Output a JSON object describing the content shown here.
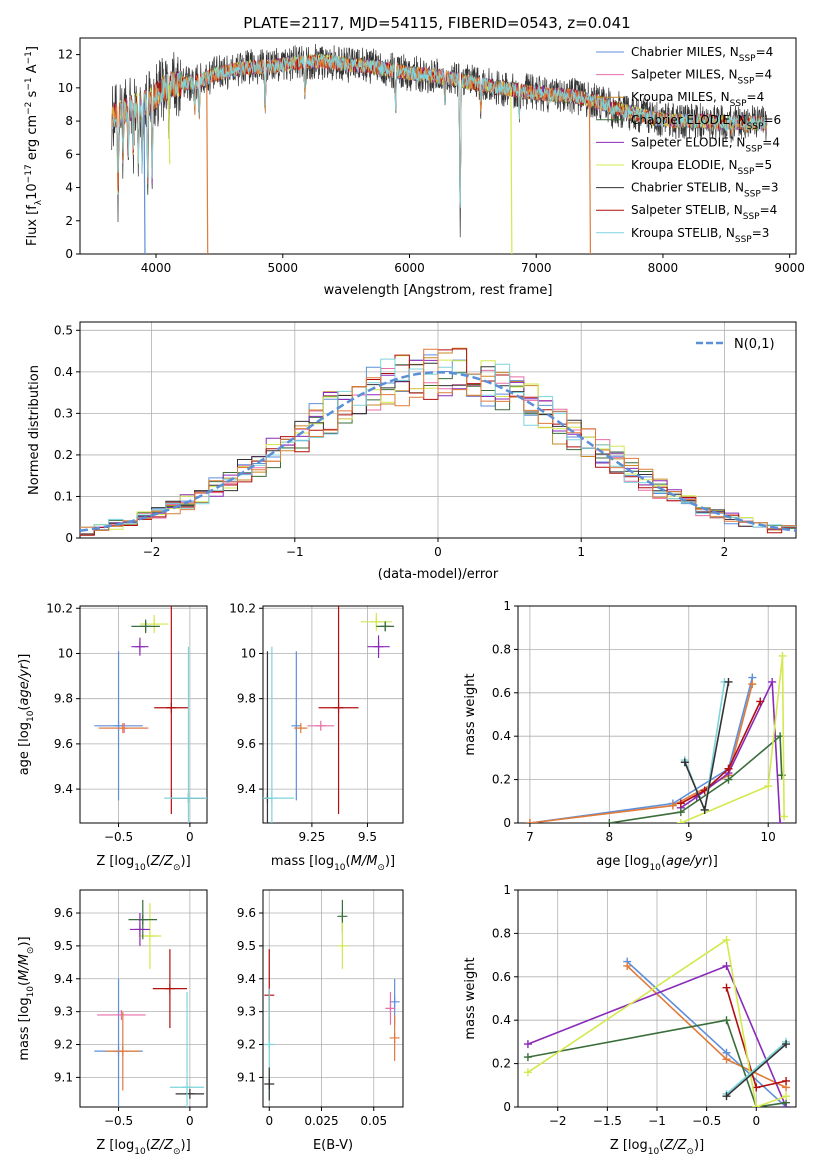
{
  "figure": {
    "title": "PLATE=2117, MJD=54115, FIBERID=0543, z=0.041"
  },
  "colors": {
    "chabrier_miles": "#5f8fd9",
    "salpeter_miles": "#e86ea8",
    "kroupa_miles": "#c98a26",
    "chabrier_elodie": "#3a6e3a",
    "salpeter_elodie": "#8a2ab8",
    "kroupa_elodie": "#d4e84f",
    "chabrier_stelib": "#333333",
    "salpeter_stelib": "#b20f0f",
    "kroupa_stelib": "#7dd4dc",
    "extra_orange": "#e07b39",
    "gauss": "#5b8fd8"
  },
  "chart_data": [
    {
      "id": "spectrum",
      "type": "line",
      "xlabel": "wavelength [Angstrom, rest frame]",
      "ylabel": "Flux [f_λ10^-17 erg cm^-2 s^-1 A^-1]",
      "xlim": [
        3400,
        9050
      ],
      "ylim": [
        0,
        13
      ],
      "xticks": [
        4000,
        5000,
        6000,
        7000,
        8000,
        9000
      ],
      "yticks": [
        0,
        2,
        4,
        6,
        8,
        10,
        12
      ],
      "legend_position": "top-right",
      "legend": [
        {
          "label": "Chabrier MILES, N",
          "sub": "SSP",
          "suffix": "=4",
          "color": "chabrier_miles"
        },
        {
          "label": "Salpeter MILES, N",
          "sub": "SSP",
          "suffix": "=4",
          "color": "salpeter_miles"
        },
        {
          "label": "Kroupa MILES, N",
          "sub": "SSP",
          "suffix": "=4",
          "color": "kroupa_miles"
        },
        {
          "label": "Chabrier ELODIE, N",
          "sub": "SSP",
          "suffix": "=6",
          "color": "chabrier_elodie"
        },
        {
          "label": "Salpeter ELODIE, N",
          "sub": "SSP",
          "suffix": "=4",
          "color": "salpeter_elodie"
        },
        {
          "label": "Kroupa ELODIE, N",
          "sub": "SSP",
          "suffix": "=5",
          "color": "kroupa_elodie"
        },
        {
          "label": "Chabrier STELIB, N",
          "sub": "SSP",
          "suffix": "=3",
          "color": "chabrier_stelib"
        },
        {
          "label": "Salpeter STELIB, N",
          "sub": "SSP",
          "suffix": "=4",
          "color": "salpeter_stelib"
        },
        {
          "label": "Kroupa STELIB, N",
          "sub": "SSP",
          "suffix": "=3",
          "color": "kroupa_stelib"
        }
      ],
      "continuum": [
        [
          3650,
          8.2
        ],
        [
          3800,
          8.8
        ],
        [
          3950,
          9.2
        ],
        [
          4100,
          10.2
        ],
        [
          4300,
          10.3
        ],
        [
          4500,
          10.9
        ],
        [
          4700,
          11.2
        ],
        [
          4900,
          11.3
        ],
        [
          5100,
          11.5
        ],
        [
          5300,
          11.6
        ],
        [
          5500,
          11.4
        ],
        [
          5700,
          11.3
        ],
        [
          5900,
          11.0
        ],
        [
          6100,
          10.8
        ],
        [
          6300,
          10.6
        ],
        [
          6500,
          10.3
        ],
        [
          6700,
          10.0
        ],
        [
          6900,
          9.8
        ],
        [
          7100,
          9.6
        ],
        [
          7300,
          9.5
        ],
        [
          7500,
          9.1
        ],
        [
          7700,
          8.6
        ],
        [
          7900,
          8.2
        ],
        [
          8100,
          8.0
        ],
        [
          8300,
          8.0
        ],
        [
          8500,
          7.9
        ],
        [
          8700,
          7.9
        ],
        [
          8820,
          7.8
        ]
      ],
      "dips": [
        [
          3700,
          3.2
        ],
        [
          3740,
          5.5
        ],
        [
          3780,
          6.0
        ],
        [
          3820,
          6.0
        ],
        [
          3860,
          5.0
        ],
        [
          3890,
          5.5
        ],
        [
          3934,
          4.8
        ],
        [
          3970,
          5.0
        ],
        [
          4101,
          8.0
        ],
        [
          4305,
          8.6
        ],
        [
          4340,
          8.0
        ],
        [
          4861,
          8.5
        ],
        [
          5175,
          9.5
        ],
        [
          5890,
          9.0
        ],
        [
          6280,
          9.0
        ],
        [
          6400,
          1.0
        ],
        [
          6563,
          8.6
        ],
        [
          6867,
          8.4
        ],
        [
          7600,
          8.4
        ],
        [
          8500,
          7.6
        ],
        [
          8542,
          7.5
        ],
        [
          8662,
          7.5
        ]
      ],
      "spikes": [
        [
          3905,
          0.0,
          "chabrier_miles"
        ],
        [
          4400,
          0.0,
          "extra_orange"
        ],
        [
          6800,
          0.0,
          "kroupa_elodie"
        ],
        [
          7420,
          0.0,
          "extra_orange"
        ],
        [
          4100,
          5.4,
          "kroupa_elodie"
        ]
      ]
    },
    {
      "id": "residuals",
      "type": "line",
      "xlabel": "(data-model)/error",
      "ylabel": "Normed distribution",
      "xlim": [
        -2.5,
        2.5
      ],
      "ylim": [
        0,
        0.52
      ],
      "xticks": [
        -2,
        -1,
        0,
        1,
        2
      ],
      "yticks": [
        0.0,
        0.1,
        0.2,
        0.3,
        0.4,
        0.5
      ],
      "grid": true,
      "legend_position": "top-right",
      "gauss_label": "N(0,1)",
      "bin_width": 0.1
    },
    {
      "id": "age_vs_Z",
      "type": "scatter",
      "xlabel": "Z [log10(Z/Z⊙)]",
      "ylabel": "age  [log10(age/yr)]",
      "xlim": [
        -0.77,
        0.12
      ],
      "ylim": [
        9.25,
        10.21
      ],
      "xticks": [
        -0.5,
        0.0
      ],
      "yticks": [
        9.4,
        9.6,
        9.8,
        10.0,
        10.2
      ],
      "grid": true,
      "points": [
        {
          "color": "chabrier_miles",
          "x": -0.5,
          "y": 9.68,
          "xerr": 0.17,
          "yerr": 0.33
        },
        {
          "color": "salpeter_miles",
          "x": -0.46,
          "y": 9.67,
          "xerr": 0.17,
          "yerr": 0.0
        },
        {
          "color": "extra_orange",
          "x": -0.47,
          "y": 9.67,
          "xerr": 0.17,
          "yerr": 0.0
        },
        {
          "color": "kroupa_elodie",
          "x": -0.25,
          "y": 10.13,
          "xerr": 0.1,
          "yerr": 0.04
        },
        {
          "color": "chabrier_elodie",
          "x": -0.31,
          "y": 10.12,
          "xerr": 0.1,
          "yerr": 0.03
        },
        {
          "color": "salpeter_elodie",
          "x": -0.35,
          "y": 10.03,
          "xerr": 0.06,
          "yerr": 0.04
        },
        {
          "color": "salpeter_stelib",
          "x": -0.13,
          "y": 9.76,
          "xerr": 0.12,
          "yerr": 0.47
        },
        {
          "color": "chabrier_stelib",
          "x": -0.01,
          "y": 9.36,
          "xerr": 0.12,
          "yerr": 0.0
        },
        {
          "color": "kroupa_stelib",
          "x": -0.01,
          "y": 9.36,
          "xerr": 0.17,
          "yerr": 0.67
        }
      ]
    },
    {
      "id": "age_vs_mass",
      "type": "scatter",
      "xlabel": "mass [log10(M/M⊙)]",
      "xlim": [
        9.03,
        9.66
      ],
      "ylim": [
        9.25,
        10.21
      ],
      "xticks": [
        9.25,
        9.5
      ],
      "yticks": [
        9.4,
        9.6,
        9.8,
        10.0,
        10.2
      ],
      "grid": true,
      "points": [
        {
          "color": "chabrier_miles",
          "x": 9.18,
          "y": 9.68,
          "xerr": 0.0,
          "yerr": 0.33
        },
        {
          "color": "salpeter_miles",
          "x": 9.29,
          "y": 9.68,
          "xerr": 0.06,
          "yerr": 0.0
        },
        {
          "color": "extra_orange",
          "x": 9.2,
          "y": 9.67,
          "xerr": 0.03,
          "yerr": 0.0
        },
        {
          "color": "kroupa_elodie",
          "x": 9.54,
          "y": 10.14,
          "xerr": 0.07,
          "yerr": 0.04
        },
        {
          "color": "chabrier_elodie",
          "x": 9.58,
          "y": 10.12,
          "xerr": 0.04,
          "yerr": 0.02
        },
        {
          "color": "salpeter_elodie",
          "x": 9.55,
          "y": 10.03,
          "xerr": 0.05,
          "yerr": 0.05
        },
        {
          "color": "salpeter_stelib",
          "x": 9.37,
          "y": 9.76,
          "xerr": 0.09,
          "yerr": 0.47
        },
        {
          "color": "chabrier_stelib",
          "x": 9.05,
          "y": 9.36,
          "xerr": 0.0,
          "yerr": 0.65
        },
        {
          "color": "kroupa_stelib",
          "x": 9.07,
          "y": 9.36,
          "xerr": 0.1,
          "yerr": 0.67
        }
      ]
    },
    {
      "id": "weight_vs_age",
      "type": "line",
      "xlabel": "age  [log10(age/yr)]",
      "ylabel": "mass weight",
      "xlim": [
        6.85,
        10.35
      ],
      "ylim": [
        0,
        1
      ],
      "xticks": [
        7,
        8,
        9,
        10
      ],
      "yticks": [
        0.0,
        0.2,
        0.4,
        0.6,
        0.8,
        1.0
      ],
      "grid": true,
      "series": [
        {
          "color": "chabrier_miles",
          "x": [
            7.0,
            8.8,
            9.5,
            9.8
          ],
          "y": [
            0.0,
            0.09,
            0.25,
            0.67
          ]
        },
        {
          "color": "extra_orange",
          "x": [
            7.0,
            8.8,
            9.5,
            9.8
          ],
          "y": [
            0.0,
            0.08,
            0.22,
            0.64
          ]
        },
        {
          "color": "salpeter_elodie",
          "x": [
            8.9,
            9.1,
            9.5,
            10.05,
            10.15
          ],
          "y": [
            0.07,
            0.12,
            0.23,
            0.65,
            0.0
          ]
        },
        {
          "color": "salpeter_stelib",
          "x": [
            8.9,
            9.2,
            9.5,
            9.9
          ],
          "y": [
            0.09,
            0.15,
            0.25,
            0.56
          ]
        },
        {
          "color": "chabrier_elodie",
          "x": [
            8.0,
            8.9,
            9.5,
            10.15,
            10.17
          ],
          "y": [
            0.0,
            0.05,
            0.2,
            0.4,
            0.22
          ]
        },
        {
          "color": "kroupa_elodie",
          "x": [
            8.9,
            10.0,
            10.18,
            10.2
          ],
          "y": [
            0.0,
            0.17,
            0.77,
            0.03
          ]
        },
        {
          "color": "kroupa_stelib",
          "x": [
            8.95,
            9.2,
            9.45
          ],
          "y": [
            0.29,
            0.06,
            0.65
          ]
        },
        {
          "color": "chabrier_stelib",
          "x": [
            8.95,
            9.2,
            9.5
          ],
          "y": [
            0.28,
            0.06,
            0.65
          ]
        }
      ]
    },
    {
      "id": "mass_vs_Z",
      "type": "scatter",
      "xlabel": "Z [log10(Z/Z⊙)]",
      "ylabel": "mass [log10(M/M⊙)]",
      "xlim": [
        -0.77,
        0.12
      ],
      "ylim": [
        9.01,
        9.67
      ],
      "xticks": [
        -0.5,
        0.0
      ],
      "yticks": [
        9.1,
        9.2,
        9.3,
        9.4,
        9.5,
        9.6
      ],
      "grid": true,
      "points": [
        {
          "color": "chabrier_miles",
          "x": -0.5,
          "y": 9.18,
          "xerr": 0.17,
          "yerr": 0.22
        },
        {
          "color": "salpeter_miles",
          "x": -0.48,
          "y": 9.29,
          "xerr": 0.17,
          "yerr": 0.0
        },
        {
          "color": "extra_orange",
          "x": -0.47,
          "y": 9.18,
          "xerr": 0.12,
          "yerr": 0.12
        },
        {
          "color": "kroupa_elodie",
          "x": -0.28,
          "y": 9.53,
          "xerr": 0.08,
          "yerr": 0.1
        },
        {
          "color": "chabrier_elodie",
          "x": -0.33,
          "y": 9.58,
          "xerr": 0.1,
          "yerr": 0.06
        },
        {
          "color": "salpeter_elodie",
          "x": -0.35,
          "y": 9.55,
          "xerr": 0.07,
          "yerr": 0.05
        },
        {
          "color": "salpeter_stelib",
          "x": -0.14,
          "y": 9.37,
          "xerr": 0.12,
          "yerr": 0.12
        },
        {
          "color": "chabrier_stelib",
          "x": 0.0,
          "y": 9.05,
          "xerr": 0.1,
          "yerr": 0.0
        },
        {
          "color": "kroupa_stelib",
          "x": -0.02,
          "y": 9.07,
          "xerr": 0.12,
          "yerr": 0.29
        }
      ]
    },
    {
      "id": "mass_vs_EBV",
      "type": "scatter",
      "xlabel": "E(B-V)",
      "xlim": [
        -0.003,
        0.064
      ],
      "ylim": [
        9.01,
        9.67
      ],
      "xticks": [
        0.0,
        0.025,
        0.05
      ],
      "yticks": [
        9.1,
        9.2,
        9.3,
        9.4,
        9.5,
        9.6
      ],
      "grid": true,
      "points": [
        {
          "color": "salpeter_stelib",
          "x": 0.0,
          "y": 9.35,
          "xerr": 0.0,
          "yerr": 0.14
        },
        {
          "color": "kroupa_stelib",
          "x": 0.0,
          "y": 9.2,
          "xerr": 0.0,
          "yerr": 0.17
        },
        {
          "color": "chabrier_stelib",
          "x": 0.0,
          "y": 9.08,
          "xerr": 0.0,
          "yerr": 0.05
        },
        {
          "color": "chabrier_elodie",
          "x": 0.035,
          "y": 9.59,
          "xerr": 0.0,
          "yerr": 0.05
        },
        {
          "color": "kroupa_elodie",
          "x": 0.035,
          "y": 9.5,
          "xerr": 0.0,
          "yerr": 0.07
        },
        {
          "color": "chabrier_miles",
          "x": 0.06,
          "y": 9.33,
          "xerr": 0.0,
          "yerr": 0.07
        },
        {
          "color": "salpeter_miles",
          "x": 0.058,
          "y": 9.31,
          "xerr": 0.0,
          "yerr": 0.05
        },
        {
          "color": "extra_orange",
          "x": 0.06,
          "y": 9.22,
          "xerr": 0.0,
          "yerr": 0.07
        }
      ]
    },
    {
      "id": "weight_vs_Z",
      "type": "line",
      "xlabel": "Z [log10(Z/Z⊙)]",
      "ylabel": "mass weight",
      "xlim": [
        -2.4,
        0.4
      ],
      "ylim": [
        0,
        1
      ],
      "xticks": [
        -2.0,
        -1.5,
        -1.0,
        -0.5,
        0.0
      ],
      "yticks": [
        0.0,
        0.2,
        0.4,
        0.6,
        0.8,
        1.0
      ],
      "grid": true,
      "series": [
        {
          "color": "chabrier_miles",
          "x": [
            -1.3,
            -0.3,
            0.3
          ],
          "y": [
            0.67,
            0.25,
            0.0
          ]
        },
        {
          "color": "extra_orange",
          "x": [
            -1.3,
            -0.3,
            0.3
          ],
          "y": [
            0.65,
            0.22,
            0.09
          ]
        },
        {
          "color": "salpeter_elodie",
          "x": [
            -2.3,
            -0.3,
            0.3
          ],
          "y": [
            0.29,
            0.65,
            0.0
          ]
        },
        {
          "color": "salpeter_stelib",
          "x": [
            -0.3,
            0.0,
            0.3
          ],
          "y": [
            0.55,
            0.09,
            0.12
          ]
        },
        {
          "color": "chabrier_elodie",
          "x": [
            -2.3,
            -0.3,
            0.0,
            0.3
          ],
          "y": [
            0.23,
            0.4,
            0.0,
            0.02
          ]
        },
        {
          "color": "kroupa_elodie",
          "x": [
            -2.3,
            -0.3,
            0.0,
            0.3
          ],
          "y": [
            0.16,
            0.77,
            0.0,
            0.05
          ]
        },
        {
          "color": "kroupa_stelib",
          "x": [
            -0.3,
            0.3
          ],
          "y": [
            0.06,
            0.3
          ]
        },
        {
          "color": "chabrier_stelib",
          "x": [
            -0.3,
            0.3
          ],
          "y": [
            0.05,
            0.29
          ]
        }
      ]
    }
  ]
}
